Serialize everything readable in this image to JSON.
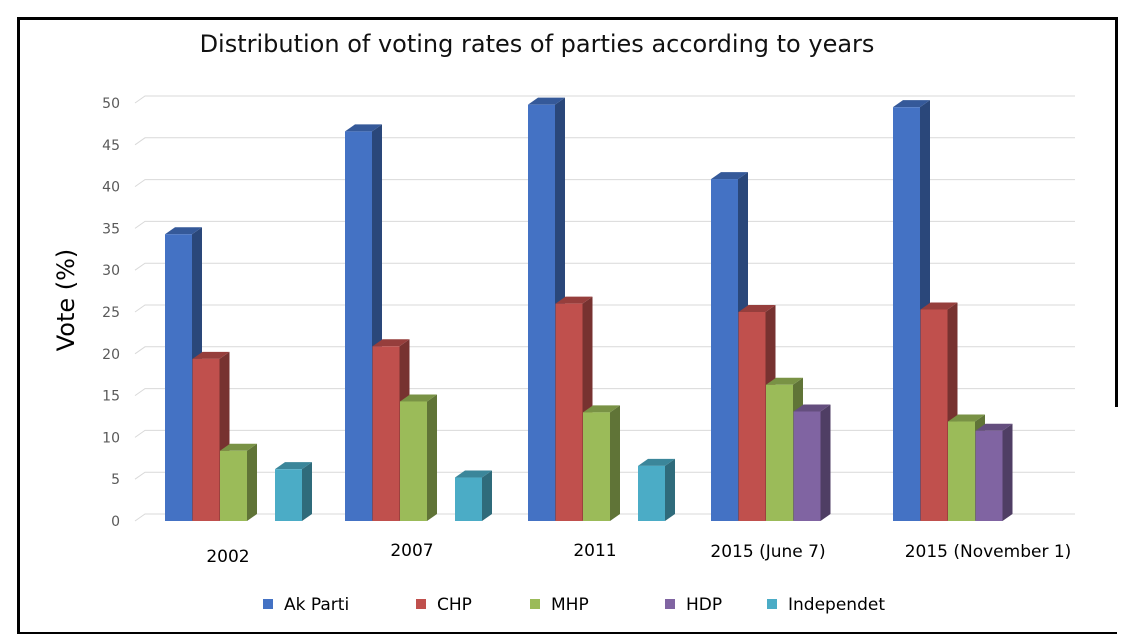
{
  "chart_data": {
    "type": "bar",
    "title": "Distribution of voting rates of parties according to years",
    "ylabel": "Vote  (%)",
    "xlabel": "",
    "ylim": [
      0,
      50
    ],
    "yticks": [
      0,
      5,
      10,
      15,
      20,
      25,
      30,
      35,
      40,
      45,
      50
    ],
    "grid": true,
    "legend_position": "bottom",
    "categories": [
      "2002",
      "2007",
      "2011",
      "2015   (June 7)",
      "2015 (November 1)"
    ],
    "series": [
      {
        "name": "Ak Parti",
        "color": "#4472C4",
        "values": [
          34.3,
          46.6,
          49.8,
          40.9,
          49.5
        ]
      },
      {
        "name": "CHP",
        "color": "#C0504D",
        "values": [
          19.4,
          20.9,
          26.0,
          25.0,
          25.3
        ]
      },
      {
        "name": "MHP",
        "color": "#9BBB59",
        "values": [
          8.4,
          14.3,
          13.0,
          16.3,
          11.9
        ]
      },
      {
        "name": "HDP",
        "color": "#8064A2",
        "values": [
          null,
          null,
          null,
          13.1,
          10.8
        ]
      },
      {
        "name": "Independet",
        "color": "#4BACC6",
        "values": [
          6.2,
          5.2,
          6.6,
          null,
          null
        ]
      }
    ]
  }
}
